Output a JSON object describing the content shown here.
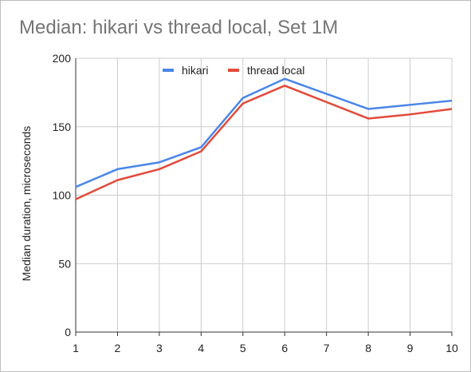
{
  "chart_data": {
    "type": "line",
    "title": "Median: hikari vs thread local, Set 1M",
    "xlabel": "",
    "ylabel": "Median duration, microseconds",
    "x": [
      1,
      2,
      3,
      4,
      5,
      6,
      7,
      8,
      9,
      10
    ],
    "xlim": [
      1,
      10
    ],
    "ylim": [
      0,
      200
    ],
    "yticks": [
      0,
      50,
      100,
      150,
      200
    ],
    "grid": true,
    "legend_position": "top",
    "series": [
      {
        "name": "hikari",
        "color": "#4a86e8",
        "values": [
          106,
          119,
          124,
          135,
          171,
          185,
          174,
          163,
          166,
          169
        ]
      },
      {
        "name": "thread local",
        "color": "#e24a3b",
        "values": [
          97,
          111,
          119,
          132,
          167,
          180,
          168,
          156,
          159,
          163
        ]
      }
    ]
  }
}
